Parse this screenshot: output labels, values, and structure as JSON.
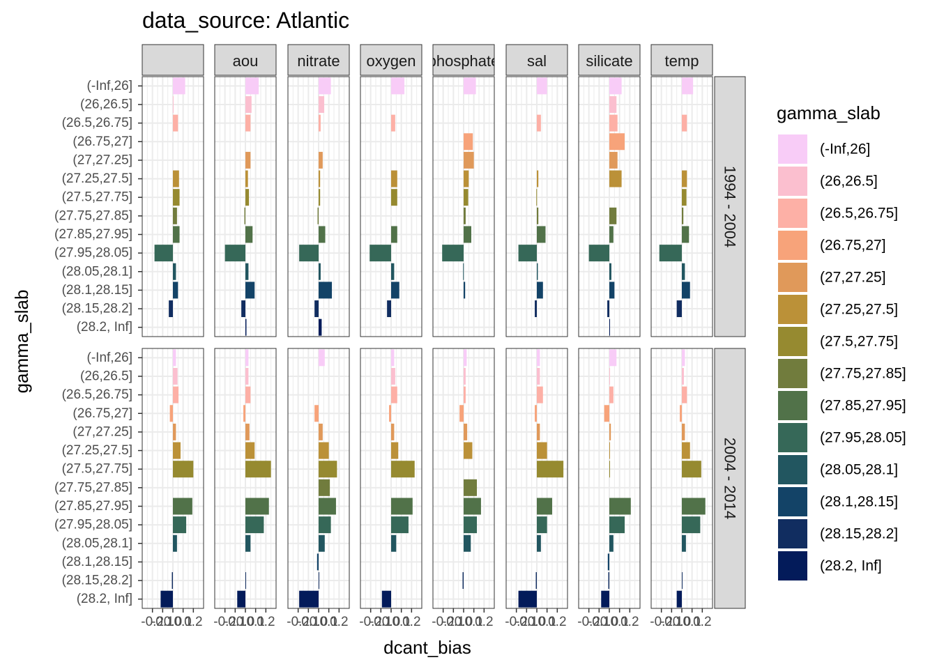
{
  "chart_data": {
    "type": "bar",
    "orientation": "horizontal",
    "title": "data_source: Atlantic",
    "xlabel": "dcant_bias",
    "ylabel": "gamma_slab",
    "legend_title": "gamma_slab",
    "legend_position": "right",
    "xlim": [
      -0.3,
      0.3
    ],
    "x_ticks": [
      -0.2,
      -0.1,
      0.0,
      0.1,
      0.2
    ],
    "x_tick_labels": [
      "-0.2",
      "-0.1",
      "0.0",
      "0.1",
      "0.2"
    ],
    "grid": true,
    "categories": [
      "(-Inf,26]",
      "(26,26.5]",
      "(26.5,26.75]",
      "(26.75,27]",
      "(27,27.25]",
      "(27.25,27.5]",
      "(27.5,27.75]",
      "(27.75,27.85]",
      "(27.85,27.95]",
      "(27.95,28.05]",
      "(28.05,28.1]",
      "(28.1,28.15]",
      "(28.15,28.2]",
      "(28.2, Inf]"
    ],
    "colors": [
      "#f8ccf7",
      "#fbbfcf",
      "#fdb0a6",
      "#f7a37a",
      "#e0995a",
      "#bb9138",
      "#968a30",
      "#717c3d",
      "#517249",
      "#366858",
      "#225660",
      "#134367",
      "#112d60",
      "#031b5a"
    ],
    "facet_cols": [
      "",
      "aou",
      "nitrate",
      "oxygen",
      "phosphate",
      "sal",
      "silicate",
      "temp"
    ],
    "facet_rows": [
      "1994 - 2004",
      "2004 - 2014"
    ],
    "values": [
      [
        [
          0.12,
          0.0,
          0.05,
          null,
          null,
          0.06,
          0.065,
          0.04,
          0.065,
          -0.18,
          0.03,
          0.05,
          -0.04,
          null
        ],
        [
          0.13,
          0.06,
          0.05,
          null,
          0.05,
          0.025,
          0.035,
          -0.01,
          0.07,
          -0.2,
          0.03,
          0.09,
          -0.04,
          0.01
        ],
        [
          0.12,
          0.055,
          0.02,
          null,
          0.04,
          0.015,
          0.015,
          -0.01,
          0.065,
          -0.19,
          0.02,
          0.13,
          -0.04,
          0.03
        ],
        [
          0.13,
          null,
          0.04,
          null,
          null,
          0.06,
          0.06,
          null,
          0.06,
          -0.21,
          0.03,
          0.08,
          -0.04,
          null
        ],
        [
          0.12,
          null,
          null,
          0.09,
          0.1,
          0.05,
          0.045,
          0.02,
          0.075,
          -0.21,
          -0.005,
          0.015,
          null,
          null
        ],
        [
          0.1,
          null,
          0.04,
          null,
          null,
          0.015,
          -0.005,
          0.015,
          0.085,
          -0.18,
          0.01,
          0.06,
          -0.02,
          null
        ],
        [
          0.12,
          0.07,
          0.08,
          0.15,
          0.08,
          0.12,
          null,
          0.07,
          0.04,
          -0.2,
          0.02,
          0.05,
          -0.02,
          0.005
        ],
        [
          0.11,
          null,
          0.05,
          null,
          null,
          0.05,
          0.045,
          0.015,
          0.07,
          -0.22,
          0.03,
          0.08,
          -0.05,
          null
        ]
      ],
      [
        [
          0.03,
          0.045,
          0.055,
          -0.03,
          0.03,
          0.075,
          0.2,
          null,
          0.19,
          0.13,
          0.04,
          null,
          -0.01,
          -0.12
        ],
        [
          0.03,
          0.03,
          0.05,
          -0.02,
          0.04,
          0.09,
          0.25,
          null,
          0.23,
          0.18,
          0.05,
          null,
          0.005,
          -0.08
        ],
        [
          0.06,
          null,
          null,
          -0.04,
          0.04,
          0.1,
          0.18,
          0.11,
          0.17,
          0.12,
          0.06,
          -0.015,
          0.005,
          -0.19
        ],
        [
          0.03,
          0.04,
          0.06,
          -0.02,
          0.03,
          0.07,
          0.23,
          null,
          0.21,
          0.17,
          0.05,
          null,
          null,
          -0.09
        ],
        [
          0.03,
          0.02,
          0.02,
          -0.04,
          0.035,
          0.085,
          null,
          0.13,
          0.17,
          0.13,
          0.07,
          null,
          -0.01,
          null
        ],
        [
          0.03,
          0.03,
          0.06,
          -0.02,
          0.03,
          0.1,
          0.26,
          null,
          0.15,
          0.1,
          0.04,
          null,
          -0.01,
          -0.18
        ],
        [
          0.07,
          0.0,
          0.04,
          -0.05,
          0.015,
          0.005,
          0.0,
          null,
          0.21,
          0.15,
          0.04,
          -0.015,
          -0.01,
          -0.08
        ],
        [
          0.03,
          0.02,
          0.05,
          -0.02,
          0.03,
          0.08,
          0.19,
          null,
          0.23,
          0.18,
          0.04,
          null,
          0.005,
          -0.05
        ]
      ]
    ]
  }
}
